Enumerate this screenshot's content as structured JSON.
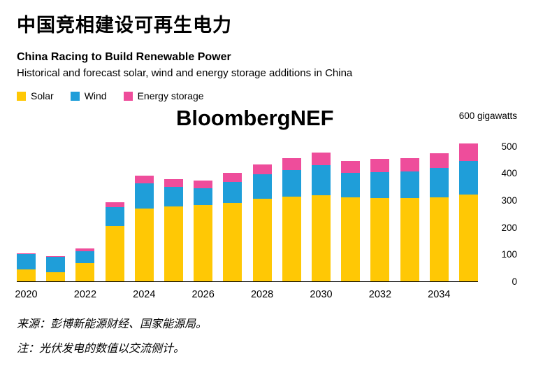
{
  "header": {
    "title_zh": "中国竞相建设可再生电力",
    "title_en": "China Racing to Build Renewable Power",
    "subtitle": "Historical and forecast solar, wind and energy storage additions in China"
  },
  "legend": [
    {
      "label": "Solar",
      "color": "#FFC805"
    },
    {
      "label": "Wind",
      "color": "#1F9ED9"
    },
    {
      "label": "Energy storage",
      "color": "#EE4D9B"
    }
  ],
  "watermark": "BloombergNEF",
  "chart_data": {
    "type": "bar",
    "stacked": true,
    "title": "China Racing to Build Renewable Power",
    "subtitle": "Historical and forecast solar, wind and energy storage additions in China",
    "unit": "gigawatts",
    "categories": [
      2020,
      2021,
      2022,
      2023,
      2024,
      2025,
      2026,
      2027,
      2028,
      2029,
      2030,
      2031,
      2032,
      2033,
      2034,
      2035
    ],
    "series": [
      {
        "name": "Solar",
        "color": "#FFC805",
        "values": [
          45,
          33,
          68,
          205,
          270,
          278,
          282,
          290,
          305,
          312,
          318,
          310,
          308,
          308,
          310,
          320
        ]
      },
      {
        "name": "Wind",
        "color": "#1F9ED9",
        "values": [
          55,
          57,
          44,
          70,
          92,
          70,
          62,
          78,
          90,
          100,
          112,
          90,
          96,
          98,
          108,
          125
        ]
      },
      {
        "name": "Energy storage",
        "color": "#EE4D9B",
        "values": [
          3,
          3,
          10,
          18,
          28,
          30,
          28,
          34,
          38,
          43,
          45,
          46,
          48,
          50,
          55,
          65
        ]
      }
    ],
    "ylim": [
      0,
      600
    ],
    "yticks": [
      0,
      100,
      200,
      300,
      400,
      500
    ],
    "ytick_top_label": "600 gigawatts",
    "xticks": [
      2020,
      2022,
      2024,
      2026,
      2028,
      2030,
      2032,
      2034
    ],
    "grid": false,
    "legend_position": "top-left"
  },
  "footer": {
    "source": "来源：彭博新能源财经、国家能源局。",
    "note": "注：光伏发电的数值以交流侧计。"
  }
}
